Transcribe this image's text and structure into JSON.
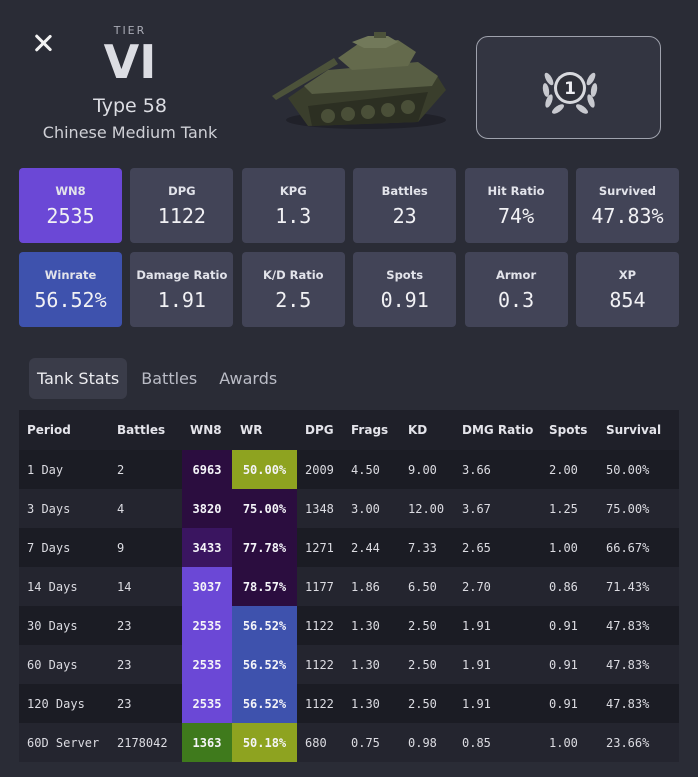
{
  "header": {
    "tier_label": "TIER",
    "tier_value": "VI",
    "tank_name": "Type 58",
    "tank_class": "Chinese Medium Tank",
    "mastery_badge": "1"
  },
  "stats": [
    {
      "label": "WN8",
      "value": "2535",
      "color": "#6b48d6"
    },
    {
      "label": "DPG",
      "value": "1122"
    },
    {
      "label": "KPG",
      "value": "1.3"
    },
    {
      "label": "Battles",
      "value": "23"
    },
    {
      "label": "Hit Ratio",
      "value": "74%"
    },
    {
      "label": "Survived",
      "value": "47.83%"
    },
    {
      "label": "Winrate",
      "value": "56.52%",
      "color": "#3e52ad"
    },
    {
      "label": "Damage Ratio",
      "value": "1.91"
    },
    {
      "label": "K/D Ratio",
      "value": "2.5"
    },
    {
      "label": "Spots",
      "value": "0.91"
    },
    {
      "label": "Armor",
      "value": "0.3"
    },
    {
      "label": "XP",
      "value": "854"
    }
  ],
  "tabs": [
    {
      "label": "Tank Stats",
      "active": true
    },
    {
      "label": "Battles",
      "active": false
    },
    {
      "label": "Awards",
      "active": false
    }
  ],
  "table": {
    "headers": [
      "Period",
      "Battles",
      "WN8",
      "WR",
      "DPG",
      "Frags",
      "KD",
      "DMG Ratio",
      "Spots",
      "Survival"
    ],
    "rows": [
      {
        "period": "1 Day",
        "battles": "2",
        "wn8": "6963",
        "wn8_color": "#2b0d3f",
        "wr": "50.00%",
        "wr_color": "#8ea320",
        "dpg": "2009",
        "frags": "4.50",
        "kd": "9.00",
        "dmg": "3.66",
        "spots": "2.00",
        "survival": "50.00%"
      },
      {
        "period": "3 Days",
        "battles": "4",
        "wn8": "3820",
        "wn8_color": "#2b0d3f",
        "wr": "75.00%",
        "wr_color": "#2b0d3f",
        "dpg": "1348",
        "frags": "3.00",
        "kd": "12.00",
        "dmg": "3.67",
        "spots": "1.25",
        "survival": "75.00%"
      },
      {
        "period": "7 Days",
        "battles": "9",
        "wn8": "3433",
        "wn8_color": "#3a1560",
        "wr": "77.78%",
        "wr_color": "#2b0d3f",
        "dpg": "1271",
        "frags": "2.44",
        "kd": "7.33",
        "dmg": "2.65",
        "spots": "1.00",
        "survival": "66.67%"
      },
      {
        "period": "14 Days",
        "battles": "14",
        "wn8": "3037",
        "wn8_color": "#6b48d6",
        "wr": "78.57%",
        "wr_color": "#2b0d3f",
        "dpg": "1177",
        "frags": "1.86",
        "kd": "6.50",
        "dmg": "2.70",
        "spots": "0.86",
        "survival": "71.43%"
      },
      {
        "period": "30 Days",
        "battles": "23",
        "wn8": "2535",
        "wn8_color": "#6b48d6",
        "wr": "56.52%",
        "wr_color": "#3e52ad",
        "dpg": "1122",
        "frags": "1.30",
        "kd": "2.50",
        "dmg": "1.91",
        "spots": "0.91",
        "survival": "47.83%"
      },
      {
        "period": "60 Days",
        "battles": "23",
        "wn8": "2535",
        "wn8_color": "#6b48d6",
        "wr": "56.52%",
        "wr_color": "#3e52ad",
        "dpg": "1122",
        "frags": "1.30",
        "kd": "2.50",
        "dmg": "1.91",
        "spots": "0.91",
        "survival": "47.83%"
      },
      {
        "period": "120 Days",
        "battles": "23",
        "wn8": "2535",
        "wn8_color": "#6b48d6",
        "wr": "56.52%",
        "wr_color": "#3e52ad",
        "dpg": "1122",
        "frags": "1.30",
        "kd": "2.50",
        "dmg": "1.91",
        "spots": "0.91",
        "survival": "47.83%"
      },
      {
        "period": "60D Server",
        "battles": "2178042",
        "wn8": "1363",
        "wn8_color": "#3f7a1c",
        "wr": "50.18%",
        "wr_color": "#8ea320",
        "dpg": "680",
        "frags": "0.75",
        "kd": "0.98",
        "dmg": "0.85",
        "spots": "1.00",
        "survival": "23.66%"
      }
    ]
  }
}
